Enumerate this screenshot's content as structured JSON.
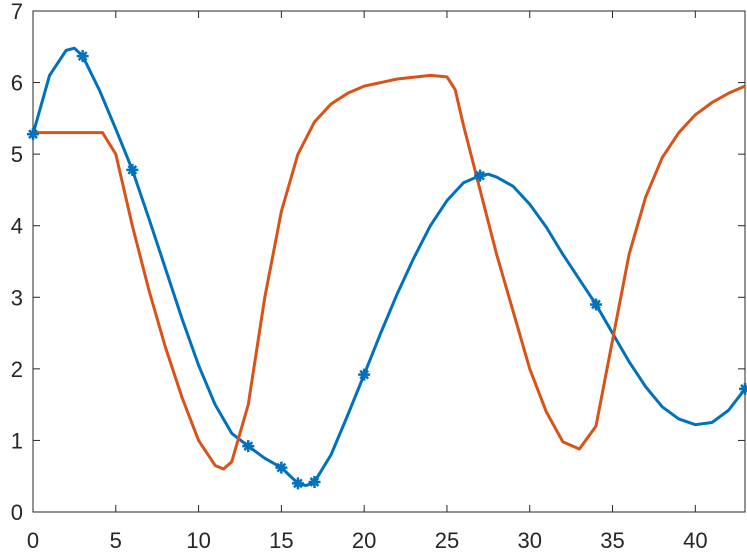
{
  "chart_data": {
    "type": "line",
    "xlim": [
      0,
      43
    ],
    "ylim": [
      0,
      7
    ],
    "xticks": [
      0,
      5,
      10,
      15,
      20,
      25,
      30,
      35,
      40
    ],
    "yticks": [
      0,
      1,
      2,
      3,
      4,
      5,
      6,
      7
    ],
    "grid": false,
    "series": [
      {
        "color": "#0072bd",
        "marker": false,
        "x": [
          0,
          1,
          2,
          2.5,
          3,
          4,
          5,
          6,
          7,
          8,
          9,
          10,
          11,
          12,
          13,
          14,
          15,
          16,
          16.5,
          17,
          18,
          19,
          20,
          21,
          22,
          23,
          24,
          25,
          26,
          27,
          27.5,
          28,
          29,
          30,
          31,
          32,
          33,
          34,
          35,
          36,
          37,
          38,
          39,
          40,
          41,
          42,
          43
        ],
        "values": [
          5.28,
          6.1,
          6.45,
          6.48,
          6.37,
          5.9,
          5.35,
          4.78,
          4.1,
          3.4,
          2.7,
          2.05,
          1.5,
          1.1,
          0.92,
          0.75,
          0.62,
          0.4,
          0.37,
          0.42,
          0.8,
          1.35,
          1.92,
          2.5,
          3.05,
          3.55,
          4.0,
          4.35,
          4.6,
          4.7,
          4.72,
          4.68,
          4.55,
          4.3,
          3.98,
          3.6,
          3.25,
          2.9,
          2.5,
          2.1,
          1.75,
          1.47,
          1.3,
          1.22,
          1.25,
          1.42,
          1.72
        ]
      },
      {
        "color": "#0072bd",
        "marker": true,
        "x": [
          0,
          3,
          6,
          13,
          15,
          16,
          17,
          20,
          27,
          34,
          43
        ],
        "values": [
          5.28,
          6.37,
          4.78,
          0.92,
          0.62,
          0.4,
          0.42,
          1.92,
          4.7,
          2.9,
          1.72
        ]
      },
      {
        "color": "#d95319",
        "marker": false,
        "x": [
          0,
          4.2,
          5,
          6,
          7,
          8,
          9,
          10,
          11,
          11.5,
          12,
          13,
          14,
          15,
          16,
          17,
          18,
          19,
          20,
          22,
          24,
          25,
          25.5,
          26,
          27,
          28,
          29,
          30,
          31,
          32,
          33,
          34,
          35,
          36,
          37,
          38,
          39,
          40,
          41,
          42,
          43
        ],
        "values": [
          5.3,
          5.3,
          5.0,
          4.0,
          3.1,
          2.3,
          1.6,
          1.0,
          0.65,
          0.6,
          0.7,
          1.5,
          3.0,
          4.2,
          5.0,
          5.45,
          5.7,
          5.85,
          5.95,
          6.05,
          6.1,
          6.08,
          5.9,
          5.4,
          4.5,
          3.6,
          2.8,
          2.0,
          1.4,
          0.98,
          0.88,
          1.2,
          2.4,
          3.6,
          4.4,
          4.95,
          5.3,
          5.55,
          5.72,
          5.85,
          5.95
        ]
      }
    ]
  }
}
